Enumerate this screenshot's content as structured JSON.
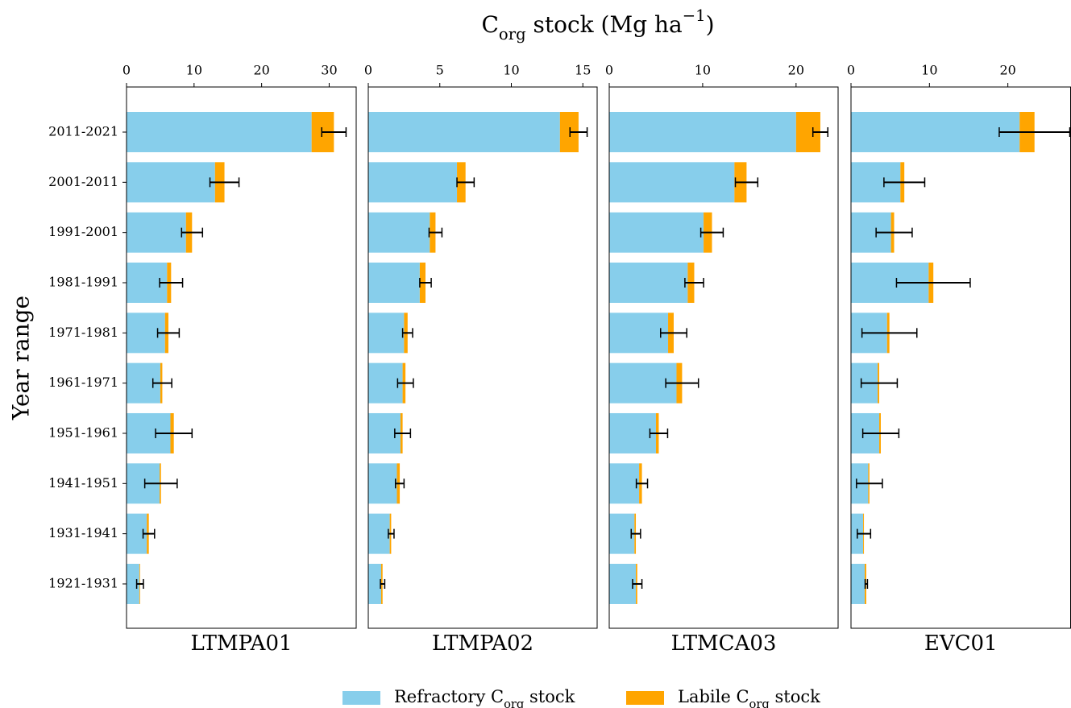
{
  "chart_data": {
    "type": "bar",
    "title": [
      "C",
      "org",
      " stock (Mg ha",
      "−1",
      ")"
    ],
    "ylabel": "Year range",
    "categories": [
      "2011-2021",
      "2001-2011",
      "1991-2001",
      "1981-1991",
      "1971-1981",
      "1961-1971",
      "1951-1961",
      "1941-1951",
      "1931-1941",
      "1921-1931"
    ],
    "series": [
      {
        "name": [
          "Refractory C",
          "org",
          " stock"
        ],
        "color": "#87ceeb"
      },
      {
        "name": [
          "Labile C",
          "org",
          " stock"
        ],
        "color": "#ffa500"
      }
    ],
    "panels": [
      {
        "title": "LTMPA01",
        "xlim": [
          0,
          34
        ],
        "xticks": [
          0,
          10,
          20,
          30
        ],
        "values": [
          [
            27.4,
            13.1,
            8.8,
            6.0,
            5.7,
            5.0,
            6.5,
            4.9,
            3.0,
            1.9
          ],
          [
            3.3,
            1.4,
            0.9,
            0.6,
            0.5,
            0.3,
            0.5,
            0.2,
            0.3,
            0.1
          ]
        ],
        "errors": [
          1.8,
          2.15,
          1.55,
          1.7,
          1.6,
          1.4,
          2.7,
          2.4,
          0.85,
          0.5
        ]
      },
      {
        "title": "LTMPA02",
        "xlim": [
          0,
          16
        ],
        "xticks": [
          0,
          5,
          10,
          15
        ],
        "values": [
          [
            13.4,
            6.2,
            4.3,
            3.6,
            2.5,
            2.4,
            2.25,
            2.0,
            1.5,
            0.9
          ],
          [
            1.3,
            0.6,
            0.4,
            0.4,
            0.25,
            0.2,
            0.15,
            0.2,
            0.1,
            0.1
          ]
        ],
        "errors": [
          0.6,
          0.6,
          0.45,
          0.4,
          0.35,
          0.55,
          0.55,
          0.3,
          0.2,
          0.15
        ]
      },
      {
        "title": "LTMCA03",
        "xlim": [
          0,
          24.5
        ],
        "xticks": [
          0,
          10,
          20
        ],
        "values": [
          [
            20.0,
            13.4,
            10.1,
            8.4,
            6.3,
            7.2,
            5.0,
            3.2,
            2.7,
            2.85
          ],
          [
            2.6,
            1.3,
            0.9,
            0.7,
            0.6,
            0.6,
            0.3,
            0.3,
            0.15,
            0.15
          ]
        ],
        "errors": [
          0.8,
          1.2,
          1.2,
          1.0,
          1.4,
          1.75,
          0.95,
          0.6,
          0.5,
          0.5
        ]
      },
      {
        "title": "EVC01",
        "xlim": [
          0,
          28
        ],
        "xticks": [
          0,
          10,
          20
        ],
        "values": [
          [
            21.5,
            6.3,
            5.1,
            9.9,
            4.6,
            3.4,
            3.6,
            2.2,
            1.55,
            1.75
          ],
          [
            1.9,
            0.5,
            0.4,
            0.6,
            0.3,
            0.2,
            0.2,
            0.15,
            0.1,
            0.2
          ]
        ],
        "errors": [
          4.5,
          2.6,
          2.3,
          4.7,
          3.5,
          2.3,
          2.3,
          1.65,
          0.85,
          0.15
        ]
      }
    ]
  }
}
